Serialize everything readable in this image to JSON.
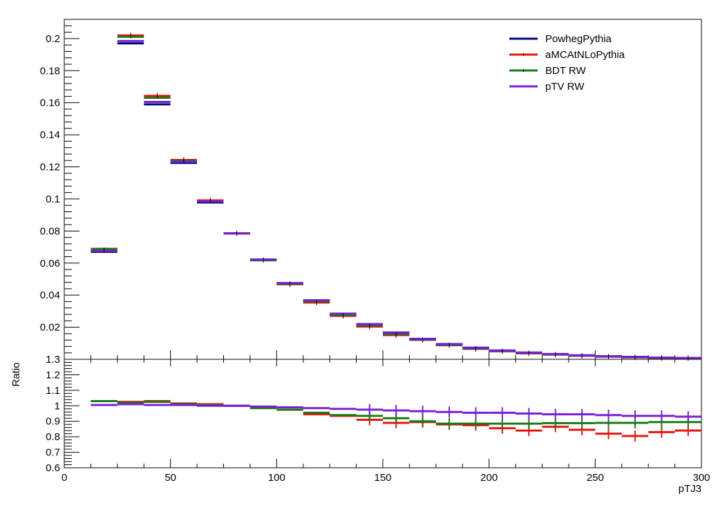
{
  "chart_data": [
    {
      "panel": "main",
      "type": "step",
      "xlim": [
        0,
        300
      ],
      "ylim": [
        0,
        0.212
      ],
      "yticks": [
        "0.02",
        "0.04",
        "0.06",
        "0.08",
        "0.1",
        "0.12",
        "0.14",
        "0.16",
        "0.18",
        "0.2"
      ],
      "bin_edges": [
        12.5,
        25,
        37.5,
        50,
        62.5,
        75,
        87.5,
        100,
        112.5,
        125,
        137.5,
        150,
        162.5,
        175,
        187.5,
        200,
        212.5,
        225,
        237.5,
        250,
        262.5,
        275,
        287.5,
        300
      ],
      "legend_position": "top-right",
      "series": [
        {
          "name": "PowhegPythia",
          "color": "#00007f",
          "values": [
            0.067,
            0.197,
            0.159,
            0.1225,
            0.0978,
            0.0785,
            0.0622,
            0.0475,
            0.0368,
            0.0284,
            0.0219,
            0.0167,
            0.0127,
            0.0095,
            0.0072,
            0.0055,
            0.0042,
            0.0033,
            0.0025,
            0.0019,
            0.0015,
            0.0011,
            0.0008
          ]
        },
        {
          "name": "aMCAtNLoPythia",
          "color": "#e8140f",
          "values": [
            0.068,
            0.202,
            0.1643,
            0.1243,
            0.0991,
            0.0786,
            0.0619,
            0.0468,
            0.0354,
            0.0271,
            0.0204,
            0.0151,
            0.0121,
            0.0088,
            0.0065,
            0.005,
            0.0037,
            0.0029,
            0.0022,
            0.0016,
            0.0012,
            0.0009,
            0.0007
          ]
        },
        {
          "name": "BDT RW",
          "color": "#167a16",
          "values": [
            0.0689,
            0.2011,
            0.1631,
            0.1238,
            0.0985,
            0.0785,
            0.0617,
            0.047,
            0.0361,
            0.0275,
            0.0211,
            0.0157,
            0.0122,
            0.0089,
            0.0067,
            0.0051,
            0.0039,
            0.003,
            0.0023,
            0.0017,
            0.0013,
            0.001,
            0.0007
          ]
        },
        {
          "name": "pTV RW",
          "color": "#7a1fd6",
          "values": [
            0.0675,
            0.1985,
            0.1605,
            0.1232,
            0.0985,
            0.0785,
            0.0622,
            0.0475,
            0.0368,
            0.0285,
            0.0218,
            0.0165,
            0.0125,
            0.0093,
            0.007,
            0.0054,
            0.0041,
            0.0032,
            0.0024,
            0.0018,
            0.0014,
            0.001,
            0.0007
          ]
        }
      ]
    },
    {
      "panel": "ratio",
      "type": "step",
      "xlim": [
        0,
        300
      ],
      "ylim": [
        0.6,
        1.3
      ],
      "ylabel": "Ratio",
      "xlabel": "pTJ3",
      "yticks": [
        "0.6",
        "0.7",
        "0.8",
        "0.9",
        "1",
        "1.1",
        "1.2",
        "1.3"
      ],
      "xticks": [
        "0",
        "50",
        "100",
        "150",
        "200",
        "250",
        "300"
      ],
      "bin_edges": [
        12.5,
        25,
        37.5,
        50,
        62.5,
        75,
        87.5,
        100,
        112.5,
        125,
        137.5,
        150,
        162.5,
        175,
        187.5,
        200,
        212.5,
        225,
        237.5,
        250,
        262.5,
        275,
        287.5,
        300
      ],
      "series": [
        {
          "name": "aMCAtNLoPythia",
          "color": "#e8140f",
          "values": [
            1.03,
            1.025,
            1.03,
            1.015,
            1.01,
            1.0,
            0.99,
            0.975,
            0.945,
            0.935,
            0.91,
            0.89,
            0.895,
            0.88,
            0.875,
            0.855,
            0.84,
            0.865,
            0.845,
            0.82,
            0.805,
            0.83,
            0.84,
            0.81
          ]
        },
        {
          "name": "BDT RW",
          "color": "#167a16",
          "values": [
            1.03,
            1.02,
            1.025,
            1.01,
            1.005,
            1.0,
            0.985,
            0.975,
            0.955,
            0.94,
            0.935,
            0.92,
            0.9,
            0.885,
            0.885,
            0.885,
            0.885,
            0.888,
            0.888,
            0.89,
            0.89,
            0.895,
            0.895,
            0.895
          ]
        },
        {
          "name": "pTV RW",
          "color": "#7a1fd6",
          "values": [
            1.005,
            1.01,
            1.005,
            1.005,
            1.0,
            1.0,
            0.995,
            0.99,
            0.985,
            0.98,
            0.975,
            0.97,
            0.965,
            0.96,
            0.955,
            0.955,
            0.95,
            0.945,
            0.945,
            0.94,
            0.935,
            0.935,
            0.93,
            0.925
          ]
        }
      ]
    }
  ]
}
